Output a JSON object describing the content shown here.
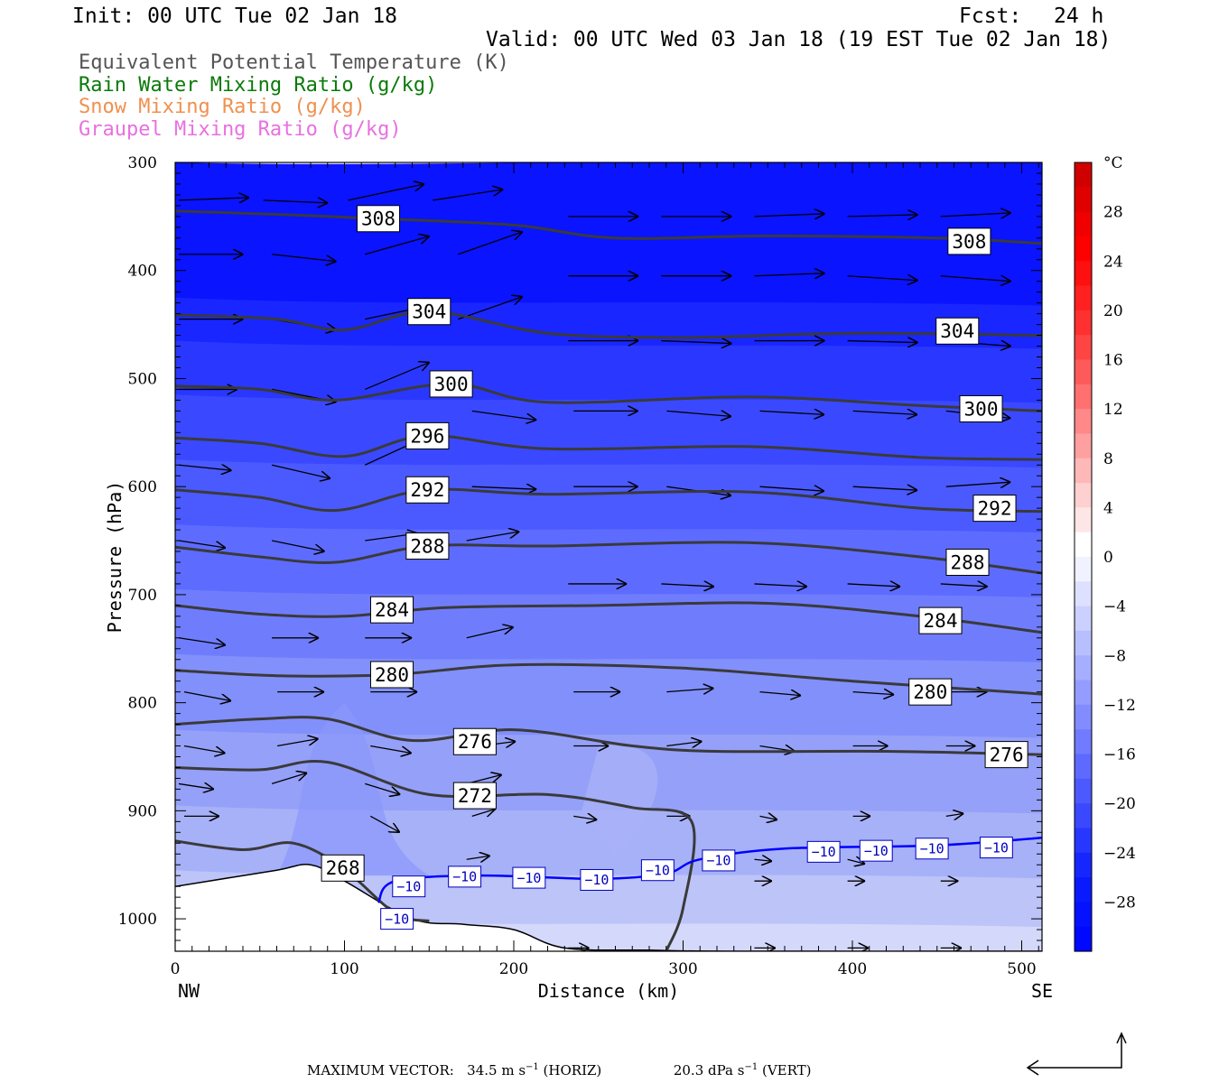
{
  "header": {
    "init": "Init: 00 UTC Tue 02 Jan 18",
    "fcst_label": "Fcst:",
    "fcst_value": "24 h",
    "valid": "Valid: 00 UTC Wed 03 Jan 18 (19 EST Tue 02 Jan 18)"
  },
  "legend": [
    {
      "label": "Equivalent Potential Temperature (K)",
      "color": "#555555"
    },
    {
      "label": "Rain Water Mixing Ratio (g/kg)",
      "color": "#0a7a0a"
    },
    {
      "label": "Snow Mixing Ratio (g/kg)",
      "color": "#f09050"
    },
    {
      "label": "Graupel Mixing Ratio (g/kg)",
      "color": "#e870e0"
    }
  ],
  "chart_data": {
    "type": "cross-section",
    "xlabel": "Distance (km)",
    "ylabel": "Pressure (hPa)",
    "x_end_labels": {
      "left": "NW",
      "right": "SE"
    },
    "xlim": [
      0,
      512
    ],
    "ylim": [
      1030,
      300
    ],
    "x_ticks": [
      0,
      100,
      200,
      300,
      400,
      500
    ],
    "y_ticks": [
      300,
      400,
      500,
      600,
      700,
      800,
      900,
      1000
    ],
    "colorbar": {
      "unit": "°C",
      "tick_labels": [
        "28",
        "24",
        "20",
        "16",
        "12",
        "8",
        "4",
        "0",
        "−4",
        "−8",
        "−12",
        "−16",
        "−20",
        "−24",
        "−28"
      ],
      "tick_values": [
        28,
        24,
        20,
        16,
        12,
        8,
        4,
        0,
        -4,
        -8,
        -12,
        -16,
        -20,
        -24,
        -28
      ],
      "range": [
        -32,
        32
      ]
    },
    "theta_e_contours": [
      {
        "label": "308",
        "label_at": [
          120,
          352
        ],
        "points": [
          [
            0,
            345
          ],
          [
            60,
            348
          ],
          [
            120,
            352
          ],
          [
            200,
            358
          ],
          [
            260,
            370
          ],
          [
            350,
            368
          ],
          [
            450,
            370
          ],
          [
            512,
            375
          ]
        ]
      },
      {
        "label": "308",
        "label_at": [
          469,
          373
        ],
        "points": []
      },
      {
        "label": "304",
        "label_at": [
          150,
          438
        ],
        "points": [
          [
            0,
            441
          ],
          [
            60,
            445
          ],
          [
            100,
            455
          ],
          [
            150,
            438
          ],
          [
            220,
            458
          ],
          [
            300,
            462
          ],
          [
            400,
            458
          ],
          [
            512,
            460
          ]
        ]
      },
      {
        "label": "304",
        "label_at": [
          462,
          456
        ],
        "points": []
      },
      {
        "label": "300",
        "label_at": [
          163,
          505
        ],
        "points": [
          [
            0,
            507
          ],
          [
            50,
            510
          ],
          [
            95,
            520
          ],
          [
            163,
            505
          ],
          [
            220,
            522
          ],
          [
            340,
            517
          ],
          [
            440,
            525
          ],
          [
            512,
            530
          ]
        ]
      },
      {
        "label": "300",
        "label_at": [
          476,
          528
        ],
        "points": []
      },
      {
        "label": "296",
        "label_at": [
          149,
          553
        ],
        "points": [
          [
            0,
            555
          ],
          [
            50,
            560
          ],
          [
            100,
            572
          ],
          [
            149,
            553
          ],
          [
            220,
            565
          ],
          [
            340,
            563
          ],
          [
            440,
            573
          ],
          [
            512,
            575
          ]
        ]
      },
      {
        "label": "292",
        "label_at": [
          149,
          603
        ],
        "points": [
          [
            0,
            603
          ],
          [
            50,
            610
          ],
          [
            95,
            622
          ],
          [
            149,
            603
          ],
          [
            220,
            607
          ],
          [
            340,
            605
          ],
          [
            440,
            620
          ],
          [
            512,
            623
          ]
        ]
      },
      {
        "label": "292",
        "label_at": [
          484,
          620
        ],
        "points": []
      },
      {
        "label": "288",
        "label_at": [
          149,
          655
        ],
        "points": [
          [
            0,
            656
          ],
          [
            50,
            665
          ],
          [
            95,
            670
          ],
          [
            149,
            655
          ],
          [
            220,
            655
          ],
          [
            340,
            652
          ],
          [
            440,
            665
          ],
          [
            512,
            680
          ]
        ]
      },
      {
        "label": "288",
        "label_at": [
          468,
          670
        ],
        "points": []
      },
      {
        "label": "284",
        "label_at": [
          128,
          714
        ],
        "points": [
          [
            0,
            710
          ],
          [
            50,
            718
          ],
          [
            100,
            720
          ],
          [
            160,
            712
          ],
          [
            250,
            710
          ],
          [
            350,
            708
          ],
          [
            440,
            720
          ],
          [
            512,
            735
          ]
        ]
      },
      {
        "label": "284",
        "label_at": [
          452,
          724
        ],
        "points": []
      },
      {
        "label": "280",
        "label_at": [
          128,
          774
        ],
        "points": [
          [
            0,
            770
          ],
          [
            60,
            775
          ],
          [
            128,
            774
          ],
          [
            200,
            765
          ],
          [
            300,
            768
          ],
          [
            400,
            780
          ],
          [
            512,
            792
          ]
        ]
      },
      {
        "label": "280",
        "label_at": [
          446,
          790
        ],
        "points": []
      },
      {
        "label": "276",
        "label_at": [
          177,
          836
        ],
        "points": [
          [
            0,
            820
          ],
          [
            50,
            815
          ],
          [
            90,
            815
          ],
          [
            140,
            835
          ],
          [
            200,
            825
          ],
          [
            270,
            840
          ],
          [
            320,
            845
          ],
          [
            420,
            845
          ],
          [
            512,
            848
          ]
        ]
      },
      {
        "label": "276",
        "label_at": [
          491,
          848
        ],
        "points": []
      },
      {
        "label": "272",
        "label_at": [
          177,
          886
        ],
        "points": [
          [
            0,
            860
          ],
          [
            50,
            862
          ],
          [
            90,
            855
          ],
          [
            150,
            885
          ],
          [
            220,
            885
          ],
          [
            270,
            897
          ],
          [
            305,
            910
          ],
          [
            300,
            990
          ],
          [
            290,
            1030
          ]
        ]
      },
      {
        "label": "268",
        "label_at": [
          99,
          953
        ],
        "points": [
          [
            0,
            928
          ],
          [
            40,
            936
          ],
          [
            70,
            930
          ],
          [
            99,
            953
          ],
          [
            130,
            995
          ],
          [
            150,
            1002
          ]
        ]
      }
    ],
    "temperature_minus10_line": {
      "label": "−10",
      "points": [
        [
          120,
          985
        ],
        [
          130,
          965
        ],
        [
          180,
          960
        ],
        [
          250,
          963
        ],
        [
          290,
          958
        ],
        [
          310,
          945
        ],
        [
          360,
          935
        ],
        [
          450,
          932
        ],
        [
          512,
          925
        ]
      ],
      "label_positions": [
        [
          138,
          970
        ],
        [
          171,
          961
        ],
        [
          209,
          962
        ],
        [
          249,
          964
        ],
        [
          285,
          955
        ],
        [
          321,
          946
        ],
        [
          383,
          938
        ],
        [
          414,
          937
        ],
        [
          447,
          935
        ],
        [
          485,
          934
        ],
        [
          131,
          1000
        ]
      ]
    },
    "terrain": {
      "points": [
        [
          0,
          970
        ],
        [
          20,
          965
        ],
        [
          60,
          955
        ],
        [
          80,
          950
        ],
        [
          100,
          965
        ],
        [
          140,
          1000
        ],
        [
          170,
          1005
        ],
        [
          200,
          1010
        ],
        [
          230,
          1027
        ],
        [
          280,
          1029
        ],
        [
          330,
          1030
        ],
        [
          512,
          1030
        ]
      ]
    },
    "max_vector": {
      "text": "MAXIMUM VECTOR:",
      "horiz_value": "34.5 m s",
      "horiz_unit": "(HORIZ)",
      "vert_value": "20.3 dPa s",
      "vert_unit": "(VERT)",
      "exponent": "−1"
    }
  }
}
